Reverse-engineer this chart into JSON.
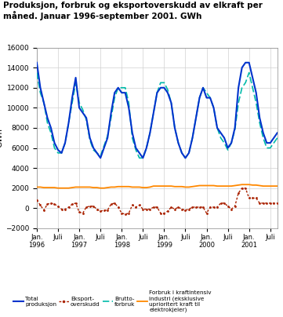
{
  "title_line1": "Produksjon, forbruk og eksportoverskudd av elkraft per",
  "title_line2": "måned. Januar 1996-september 2001. GWh",
  "ylabel": "GWh",
  "ylim": [
    -2000,
    16000
  ],
  "yticks": [
    -2000,
    0,
    2000,
    4000,
    6000,
    8000,
    10000,
    12000,
    14000,
    16000
  ],
  "background_color": "#ffffff",
  "grid_color": "#d0d0d0",
  "colors": {
    "total_prod": "#0033cc",
    "eksport": "#aa2200",
    "brutto": "#00bbaa",
    "kraftintensiv": "#ff8800"
  },
  "tick_positions": [
    0,
    6,
    12,
    18,
    24,
    30,
    36,
    42,
    48,
    54,
    60,
    66
  ],
  "tick_labels": [
    "Jan.\n1996",
    "Juli",
    "Jan.\n1997",
    "Juli",
    "Jan.\n1998",
    "Juli",
    "Jan.\n1999",
    "Juli",
    "Jan.\n2000",
    "Juli",
    "Jan.\n2001",
    "Juli"
  ],
  "total_prod": [
    14500,
    12000,
    10500,
    9000,
    8000,
    6500,
    5800,
    5500,
    6500,
    8500,
    11000,
    13000,
    10000,
    9500,
    9000,
    7000,
    6000,
    5500,
    5000,
    6000,
    7000,
    9500,
    11500,
    12000,
    11500,
    11500,
    10000,
    7500,
    6000,
    5500,
    5000,
    6000,
    7500,
    9500,
    11500,
    12000,
    12000,
    11500,
    10500,
    8000,
    6500,
    5500,
    5000,
    5500,
    7000,
    9000,
    11000,
    12000,
    11000,
    11000,
    10000,
    8000,
    7500,
    7000,
    6000,
    6500,
    8000,
    12000,
    14000,
    14500,
    14500,
    13000,
    11500,
    9000,
    7500,
    6500,
    6500,
    7000,
    7500
  ],
  "brutto_forbruk": [
    13500,
    11500,
    10500,
    8500,
    7500,
    6000,
    5500,
    5500,
    6500,
    8500,
    10500,
    12500,
    10500,
    9800,
    8800,
    6800,
    5800,
    5500,
    5200,
    6200,
    7200,
    9000,
    11000,
    12000,
    12000,
    12000,
    10500,
    7000,
    5800,
    5000,
    5000,
    6000,
    7500,
    9500,
    11500,
    12500,
    12500,
    11800,
    10500,
    8000,
    6500,
    5500,
    5000,
    5500,
    7000,
    9000,
    11000,
    12000,
    11500,
    11000,
    10000,
    8000,
    7000,
    6500,
    5800,
    6500,
    7800,
    10500,
    12000,
    12500,
    13500,
    12000,
    10500,
    8500,
    7000,
    6000,
    6000,
    6500,
    7000
  ],
  "eksport_raw": [
    800,
    300,
    -200,
    400,
    500,
    400,
    200,
    -100,
    -100,
    100,
    400,
    500,
    -400,
    -500,
    100,
    200,
    200,
    -100,
    -300,
    -200,
    -200,
    400,
    500,
    100,
    -500,
    -600,
    -500,
    300,
    100,
    300,
    -100,
    -100,
    -100,
    100,
    100,
    -500,
    -500,
    -300,
    100,
    -100,
    100,
    -100,
    -200,
    -100,
    100,
    100,
    100,
    100,
    -500,
    100,
    100,
    100,
    500,
    500,
    200,
    -100,
    200,
    1500,
    2000,
    2000,
    1000,
    1000,
    1000,
    500,
    500,
    500,
    500,
    500,
    500
  ],
  "kraftintensiv": [
    2100,
    2100,
    2050,
    2050,
    2050,
    2050,
    2000,
    2000,
    2000,
    2000,
    2050,
    2100,
    2100,
    2100,
    2100,
    2100,
    2050,
    2050,
    2000,
    2000,
    2050,
    2100,
    2100,
    2150,
    2150,
    2150,
    2150,
    2100,
    2100,
    2100,
    2050,
    2050,
    2100,
    2200,
    2200,
    2200,
    2200,
    2200,
    2200,
    2150,
    2150,
    2150,
    2100,
    2100,
    2150,
    2200,
    2250,
    2250,
    2250,
    2250,
    2250,
    2200,
    2200,
    2200,
    2200,
    2200,
    2250,
    2300,
    2350,
    2350,
    2350,
    2300,
    2300,
    2250,
    2200,
    2200,
    2200,
    2200,
    2200
  ]
}
